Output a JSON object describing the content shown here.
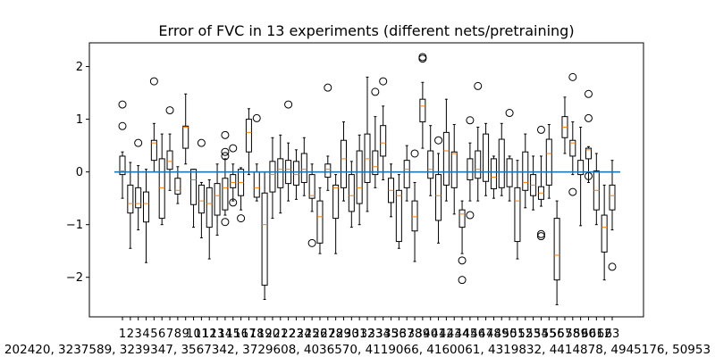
{
  "chart_data": {
    "type": "box",
    "title": "Error of FVC in 13 experiments (different nets/pretraining)",
    "xlabel": "202420, 3237589, 3239347, 3567342, 3729608, 4036570, 4119066, 4160061, 4319832, 4414878, 4945176, 50953",
    "ylabel": "",
    "ylim": [
      -2.75,
      2.45
    ],
    "yticks": [
      2,
      1,
      0,
      -1,
      -2
    ],
    "x_tick_labels": [
      "1",
      "2",
      "3",
      "4",
      "5",
      "6",
      "7",
      "8",
      "9",
      "10",
      "11",
      "12",
      "13",
      "14",
      "15",
      "16",
      "17",
      "18",
      "19",
      "20",
      "21",
      "22",
      "23",
      "24",
      "25",
      "26",
      "27",
      "28",
      "29",
      "30",
      "31",
      "32",
      "33",
      "34",
      "35",
      "36",
      "37",
      "38",
      "39",
      "40",
      "41",
      "42",
      "43",
      "44",
      "45",
      "46",
      "47",
      "48",
      "49",
      "50",
      "51",
      "52",
      "53",
      "54",
      "55",
      "56",
      "57",
      "58",
      "59",
      "60",
      "61",
      "62",
      "63"
    ],
    "reference_line": {
      "y": 0,
      "color": "#1f77b4"
    },
    "box_color": "#000000",
    "median_color": "#ff7f0e",
    "boxes": [
      {
        "x": 1,
        "q1": -0.05,
        "median": 0.02,
        "q3": 0.3,
        "wlo": -0.5,
        "whi": 0.38,
        "outliers": [
          0.87,
          1.28
        ]
      },
      {
        "x": 2,
        "q1": -0.78,
        "median": -0.6,
        "q3": -0.25,
        "wlo": -1.45,
        "whi": 0.18
      },
      {
        "x": 3,
        "q1": -0.68,
        "median": -0.6,
        "q3": -0.3,
        "wlo": -1.1,
        "whi": 0.12,
        "outliers": [
          0.55
        ]
      },
      {
        "x": 4,
        "q1": -0.95,
        "median": -0.6,
        "q3": -0.38,
        "wlo": -1.72,
        "whi": 0.05
      },
      {
        "x": 5,
        "q1": 0.22,
        "median": 0.55,
        "q3": 0.6,
        "wlo": 0.0,
        "whi": 0.92,
        "outliers": [
          1.72
        ]
      },
      {
        "x": 6,
        "q1": -0.88,
        "median": -0.3,
        "q3": 0.25,
        "wlo": -1.0,
        "whi": 0.72
      },
      {
        "x": 7,
        "q1": 0.05,
        "median": 0.2,
        "q3": 0.4,
        "wlo": -0.35,
        "whi": 0.72,
        "outliers": [
          1.17
        ]
      },
      {
        "x": 8,
        "q1": -0.42,
        "median": -0.35,
        "q3": -0.12,
        "wlo": -0.6,
        "whi": 0.1
      },
      {
        "x": 9,
        "q1": 0.45,
        "median": 0.85,
        "q3": 0.87,
        "wlo": 0.15,
        "whi": 1.48
      },
      {
        "x": 10,
        "q1": -0.62,
        "median": -0.15,
        "q3": 0.05,
        "wlo": -1.05,
        "whi": 0.05
      },
      {
        "x": 11,
        "q1": -0.78,
        "median": -0.55,
        "q3": -0.25,
        "wlo": -1.25,
        "whi": -0.2,
        "outliers": [
          0.55
        ]
      },
      {
        "x": 12,
        "q1": -1.05,
        "median": -0.6,
        "q3": -0.3,
        "wlo": -1.65,
        "whi": -0.15
      },
      {
        "x": 13,
        "q1": -0.82,
        "median": -0.45,
        "q3": -0.22,
        "wlo": -1.2,
        "whi": 0.15
      },
      {
        "x": 14,
        "q1": -0.72,
        "median": -0.3,
        "q3": -0.12,
        "wlo": -0.82,
        "whi": 0.25,
        "outliers": [
          -0.95,
          0.3,
          0.38,
          0.7
        ]
      },
      {
        "x": 15,
        "q1": -0.3,
        "median": -0.2,
        "q3": -0.05,
        "wlo": -0.55,
        "whi": 0.15,
        "outliers": [
          -0.58,
          0.45
        ]
      },
      {
        "x": 16,
        "q1": -0.45,
        "median": -0.2,
        "q3": 0.05,
        "wlo": -0.72,
        "whi": 0.08,
        "outliers": [
          -0.88
        ]
      },
      {
        "x": 17,
        "q1": 0.38,
        "median": 0.75,
        "q3": 1.0,
        "wlo": -0.05,
        "whi": 1.2
      },
      {
        "x": 18,
        "q1": -0.48,
        "median": -0.3,
        "q3": 0.0,
        "wlo": -0.55,
        "whi": 0.15,
        "outliers": [
          1.02
        ]
      },
      {
        "x": 19,
        "q1": -2.15,
        "median": -1.0,
        "q3": -0.4,
        "wlo": -2.42,
        "whi": 0.0
      },
      {
        "x": 20,
        "q1": -0.38,
        "median": -0.05,
        "q3": 0.2,
        "wlo": -0.88,
        "whi": 0.65
      },
      {
        "x": 21,
        "q1": -0.3,
        "median": 0.05,
        "q3": 0.25,
        "wlo": -0.78,
        "whi": 0.7
      },
      {
        "x": 22,
        "q1": -0.22,
        "median": 0.05,
        "q3": 0.22,
        "wlo": -0.55,
        "whi": 0.55,
        "outliers": [
          1.28
        ]
      },
      {
        "x": 23,
        "q1": -0.25,
        "median": -0.05,
        "q3": 0.2,
        "wlo": -0.52,
        "whi": 0.42
      },
      {
        "x": 24,
        "q1": -0.2,
        "median": 0.05,
        "q3": 0.35,
        "wlo": -0.45,
        "whi": 0.65
      },
      {
        "x": 25,
        "q1": -0.5,
        "median": -0.45,
        "q3": -0.05,
        "wlo": -0.75,
        "whi": 0.15,
        "outliers": [
          -1.35
        ]
      },
      {
        "x": 26,
        "q1": -1.35,
        "median": -0.85,
        "q3": -0.55,
        "wlo": -1.55,
        "whi": -0.3
      },
      {
        "x": 27,
        "q1": -0.1,
        "median": 0.05,
        "q3": 0.15,
        "wlo": -0.35,
        "whi": 0.3,
        "outliers": [
          1.6
        ]
      },
      {
        "x": 28,
        "q1": -0.88,
        "median": -0.3,
        "q3": -0.25,
        "wlo": -1.55,
        "whi": -0.05
      },
      {
        "x": 29,
        "q1": -0.3,
        "median": 0.25,
        "q3": 0.6,
        "wlo": -0.55,
        "whi": 0.95
      },
      {
        "x": 30,
        "q1": -0.75,
        "median": -0.45,
        "q3": -0.05,
        "wlo": -1.05,
        "whi": 0.2
      },
      {
        "x": 31,
        "q1": -0.6,
        "median": -0.3,
        "q3": 0.4,
        "wlo": -1.0,
        "whi": 0.7
      },
      {
        "x": 32,
        "q1": -0.2,
        "median": 0.25,
        "q3": 0.72,
        "wlo": -0.75,
        "whi": 1.8
      },
      {
        "x": 33,
        "q1": -0.05,
        "median": 0.1,
        "q3": 0.4,
        "wlo": -0.3,
        "whi": 1.05,
        "outliers": [
          1.52
        ]
      },
      {
        "x": 34,
        "q1": 0.3,
        "median": 0.55,
        "q3": 0.88,
        "wlo": -0.15,
        "whi": 1.25,
        "outliers": [
          1.72
        ]
      },
      {
        "x": 35,
        "q1": -0.58,
        "median": -0.35,
        "q3": -0.12,
        "wlo": -0.85,
        "whi": 0.15
      },
      {
        "x": 36,
        "q1": -1.32,
        "median": -0.45,
        "q3": -0.35,
        "wlo": -1.45,
        "whi": -0.05
      },
      {
        "x": 37,
        "q1": -0.3,
        "median": 0.05,
        "q3": 0.22,
        "wlo": -0.55,
        "whi": 0.5
      },
      {
        "x": 38,
        "q1": -1.12,
        "median": -0.85,
        "q3": -0.55,
        "wlo": -1.7,
        "whi": -0.2,
        "outliers": [
          0.35
        ]
      },
      {
        "x": 39,
        "q1": 0.95,
        "median": 1.25,
        "q3": 1.38,
        "wlo": 0.45,
        "whi": 1.7,
        "outliers": [
          2.15,
          2.18
        ]
      },
      {
        "x": 40,
        "q1": -0.12,
        "median": 0.05,
        "q3": 0.4,
        "wlo": -0.45,
        "whi": 0.88
      },
      {
        "x": 41,
        "q1": -0.92,
        "median": -0.45,
        "q3": -0.05,
        "wlo": -1.35,
        "whi": 0.35,
        "outliers": [
          0.6
        ]
      },
      {
        "x": 42,
        "q1": -0.25,
        "median": 0.4,
        "q3": 0.75,
        "wlo": -0.55,
        "whi": 1.38
      },
      {
        "x": 43,
        "q1": -0.3,
        "median": 0.35,
        "q3": 0.38,
        "wlo": -0.8,
        "whi": 0.9
      },
      {
        "x": 44,
        "q1": -1.05,
        "median": -0.8,
        "q3": -0.72,
        "wlo": -1.55,
        "whi": -0.55,
        "outliers": [
          -1.68,
          -2.05
        ]
      },
      {
        "x": 45,
        "q1": -0.15,
        "median": 0.0,
        "q3": 0.25,
        "wlo": -0.55,
        "whi": 0.55,
        "outliers": [
          -0.82,
          0.98
        ]
      },
      {
        "x": 46,
        "q1": -0.12,
        "median": 0.05,
        "q3": 0.4,
        "wlo": -0.55,
        "whi": 0.85,
        "outliers": [
          1.63
        ]
      },
      {
        "x": 47,
        "q1": -0.18,
        "median": 0.0,
        "q3": 0.72,
        "wlo": -0.45,
        "whi": 0.92
      },
      {
        "x": 48,
        "q1": -0.32,
        "median": -0.1,
        "q3": 0.25,
        "wlo": -0.5,
        "whi": 0.3
      },
      {
        "x": 49,
        "q1": -0.3,
        "median": 0.0,
        "q3": 0.62,
        "wlo": -0.45,
        "whi": 0.92
      },
      {
        "x": 50,
        "q1": -0.28,
        "median": 0.0,
        "q3": 0.25,
        "wlo": -0.55,
        "whi": 0.3,
        "outliers": [
          1.12
        ]
      },
      {
        "x": 51,
        "q1": -1.32,
        "median": -0.55,
        "q3": -0.3,
        "wlo": -1.65,
        "whi": 0.22
      },
      {
        "x": 52,
        "q1": -0.35,
        "median": -0.2,
        "q3": 0.38,
        "wlo": -0.68,
        "whi": 0.72
      },
      {
        "x": 53,
        "q1": -0.45,
        "median": -0.25,
        "q3": -0.05,
        "wlo": -0.72,
        "whi": 0.3
      },
      {
        "x": 54,
        "q1": -0.52,
        "median": -0.4,
        "q3": -0.28,
        "wlo": -0.65,
        "whi": 0.3,
        "outliers": [
          -1.18,
          -1.22,
          0.8
        ]
      },
      {
        "x": 55,
        "q1": -0.25,
        "median": 0.35,
        "q3": 0.62,
        "wlo": -0.5,
        "whi": 0.9
      },
      {
        "x": 56,
        "q1": -2.05,
        "median": -1.58,
        "q3": -0.88,
        "wlo": -2.52,
        "whi": -0.55
      },
      {
        "x": 57,
        "q1": 0.65,
        "median": 0.85,
        "q3": 1.05,
        "wlo": 0.35,
        "whi": 1.42
      },
      {
        "x": 58,
        "q1": 0.3,
        "median": 0.55,
        "q3": 0.6,
        "wlo": -0.05,
        "whi": 0.95,
        "outliers": [
          1.8,
          -0.38
        ]
      },
      {
        "x": 59,
        "q1": -0.05,
        "median": 0.0,
        "q3": 0.22,
        "wlo": -1.02,
        "whi": 0.85
      },
      {
        "x": 60,
        "q1": 0.25,
        "median": 0.42,
        "q3": 0.45,
        "wlo": -0.2,
        "whi": 0.48,
        "outliers": [
          1.48,
          1.02,
          -0.08
        ]
      },
      {
        "x": 61,
        "q1": -0.72,
        "median": -0.35,
        "q3": 0.02,
        "wlo": -1.0,
        "whi": 0.35
      },
      {
        "x": 62,
        "q1": -1.52,
        "median": -1.05,
        "q3": -0.82,
        "wlo": -2.05,
        "whi": -0.25
      },
      {
        "x": 63,
        "q1": -0.72,
        "median": -0.45,
        "q3": -0.25,
        "wlo": -1.1,
        "whi": 0.22,
        "outliers": [
          -1.8
        ]
      }
    ]
  }
}
